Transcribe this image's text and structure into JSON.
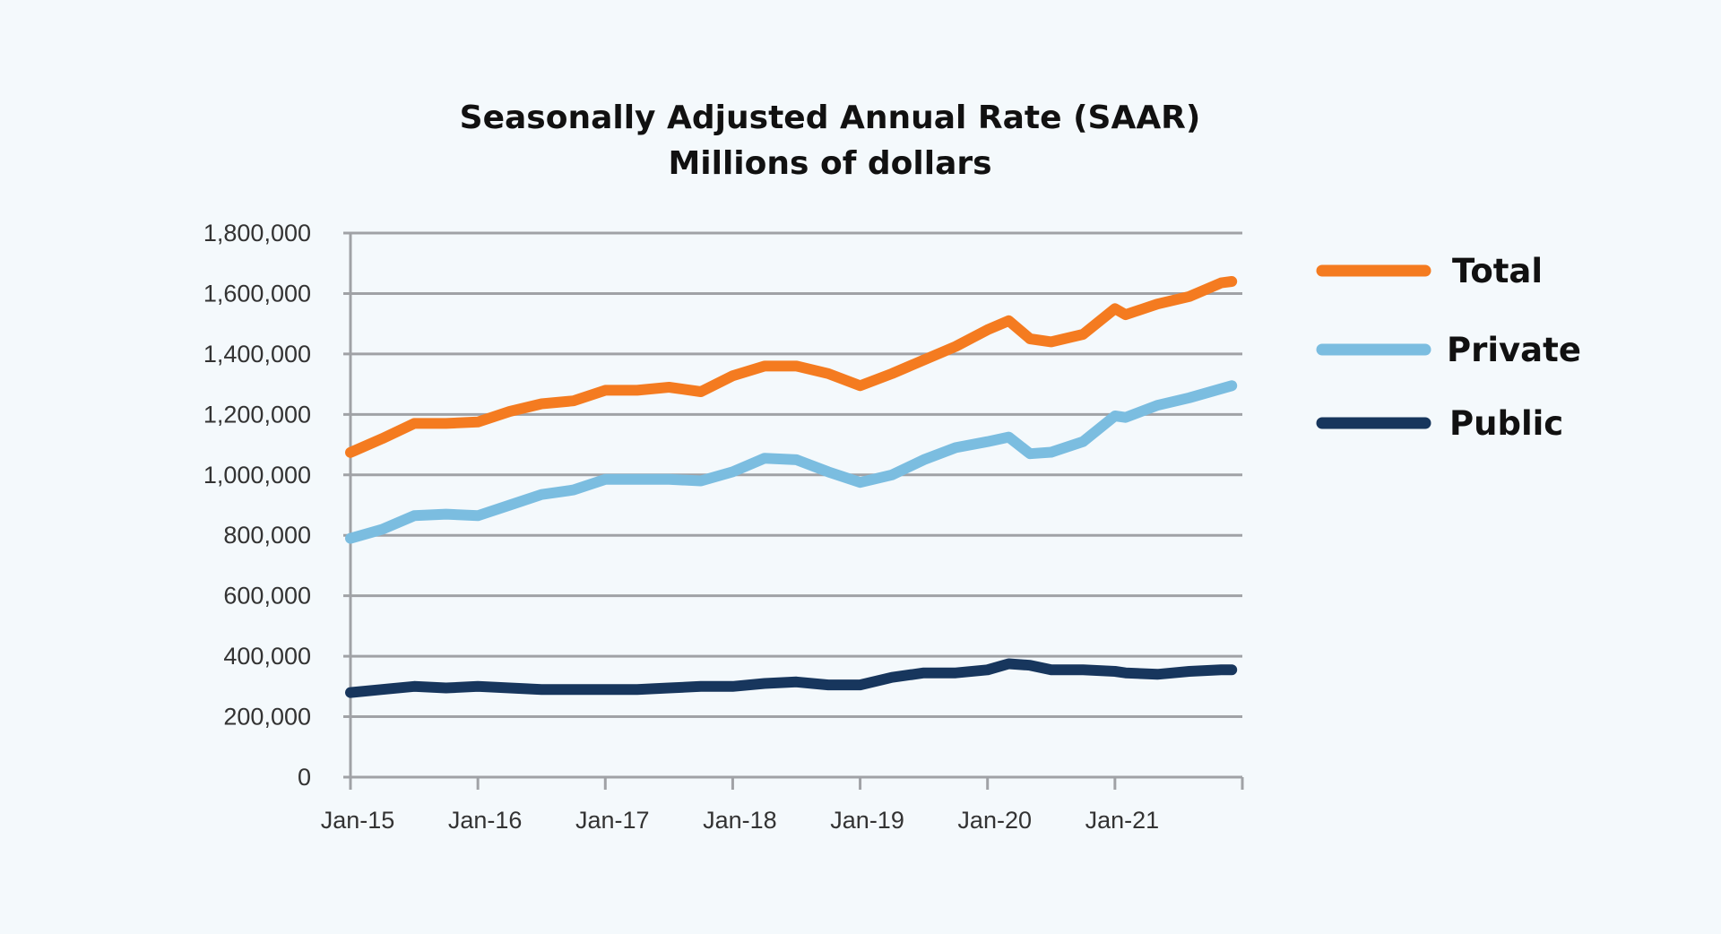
{
  "chart_data": {
    "type": "line",
    "title": "Seasonally Adjusted Annual Rate (SAAR)",
    "subtitle": "Millions of dollars",
    "xlabel": "",
    "ylabel": "",
    "ylim": [
      0,
      1800000
    ],
    "yticks": [
      0,
      200000,
      400000,
      600000,
      800000,
      1000000,
      1200000,
      1400000,
      1600000,
      1800000
    ],
    "ytick_labels": [
      "0",
      "200,000",
      "400,000",
      "600,000",
      "800,000",
      "1,000,000",
      "1,200,000",
      "1,400,000",
      "1,600,000",
      "1,800,000"
    ],
    "xlim": [
      "2015-01",
      "2022-01"
    ],
    "xtick_labels": [
      "Jan-15",
      "Jan-16",
      "Jan-17",
      "Jan-18",
      "Jan-19",
      "Jan-20",
      "Jan-21"
    ],
    "grid": "horizontal",
    "legend": "right",
    "x": [
      "2015-01",
      "2015-04",
      "2015-07",
      "2015-10",
      "2016-01",
      "2016-04",
      "2016-07",
      "2016-10",
      "2017-01",
      "2017-04",
      "2017-07",
      "2017-10",
      "2018-01",
      "2018-04",
      "2018-07",
      "2018-10",
      "2019-01",
      "2019-04",
      "2019-07",
      "2019-10",
      "2020-01",
      "2020-03",
      "2020-05",
      "2020-07",
      "2020-10",
      "2021-01",
      "2021-02",
      "2021-05",
      "2021-08",
      "2021-11",
      "2021-12"
    ],
    "series": [
      {
        "name": "Total",
        "color": "#f47b20",
        "values": [
          1074000,
          1120000,
          1170000,
          1170000,
          1175000,
          1210000,
          1235000,
          1245000,
          1280000,
          1280000,
          1290000,
          1275000,
          1328000,
          1360000,
          1360000,
          1335000,
          1295000,
          1335000,
          1380000,
          1425000,
          1480000,
          1510000,
          1450000,
          1440000,
          1465000,
          1550000,
          1530000,
          1565000,
          1590000,
          1635000,
          1640000
        ]
      },
      {
        "name": "Private",
        "color": "#7bbde0",
        "values": [
          790000,
          820000,
          865000,
          870000,
          865000,
          900000,
          935000,
          950000,
          985000,
          985000,
          985000,
          980000,
          1010000,
          1055000,
          1050000,
          1010000,
          975000,
          1000000,
          1050000,
          1090000,
          1110000,
          1125000,
          1070000,
          1075000,
          1110000,
          1195000,
          1190000,
          1230000,
          1255000,
          1285000,
          1295000
        ]
      },
      {
        "name": "Public",
        "color": "#17365d",
        "values": [
          280000,
          290000,
          300000,
          295000,
          300000,
          295000,
          290000,
          290000,
          290000,
          290000,
          295000,
          300000,
          300000,
          310000,
          315000,
          305000,
          305000,
          330000,
          345000,
          345000,
          355000,
          375000,
          370000,
          355000,
          355000,
          350000,
          345000,
          340000,
          350000,
          355000,
          355000
        ]
      }
    ]
  },
  "colors": {
    "background": "#f4f9fc",
    "grid": "#a0a2a6"
  }
}
